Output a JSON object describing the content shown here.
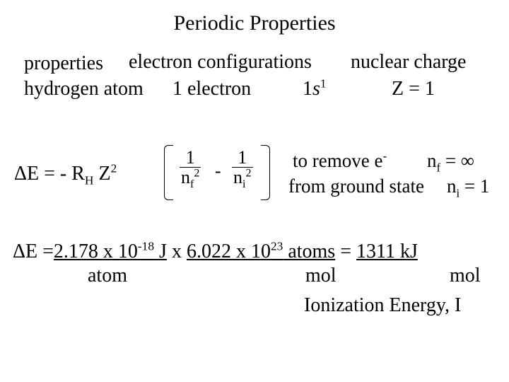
{
  "colors": {
    "background": "#ffffff",
    "text": "#000000"
  },
  "typography": {
    "family": "Times New Roman",
    "base_size_pt": 28,
    "title_size_pt": 30
  },
  "title": "Periodic Properties",
  "heads": {
    "properties": "properties",
    "econf": "electron configurations",
    "nuccharge": "nuclear charge"
  },
  "hydrogen": {
    "label": "hydrogen atom",
    "nelec": "1 electron",
    "config_pre": "1",
    "config_letter": "s",
    "config_sup": "1",
    "Z": "Z = 1"
  },
  "formula": {
    "dE": "ΔE =",
    "neg": "-",
    "R": "R",
    "Rsub": "H",
    "Z": "Z",
    "Zexp": "2",
    "one": "1",
    "nf": "n",
    "nf_sub": "f",
    "nf_exp": "2",
    "minus": "-",
    "ni": "n",
    "ni_sub": "i",
    "ni_exp": "2"
  },
  "notes": {
    "remove_pre": "to remove e",
    "remove_sup": "-",
    "ground": "from ground state",
    "nf_eq": "n",
    "nf_eq_sub": "f",
    "nf_eq_rhs": " = ∞",
    "ni_eq": "n",
    "ni_eq_sub": "i",
    "ni_eq_rhs": " = 1"
  },
  "calc": {
    "dE": "ΔE =",
    "v1_a": "2.178 x 10",
    "v1_exp": "-18",
    "v1_b": " J",
    "times": "  x  ",
    "v2_a": "6.022 x 10",
    "v2_exp": "23",
    "v2_b": " atoms",
    "eq": " = ",
    "res": "1311 kJ",
    "atom": "atom",
    "mol": "mol",
    "ion": "Ionization Energy, I"
  }
}
